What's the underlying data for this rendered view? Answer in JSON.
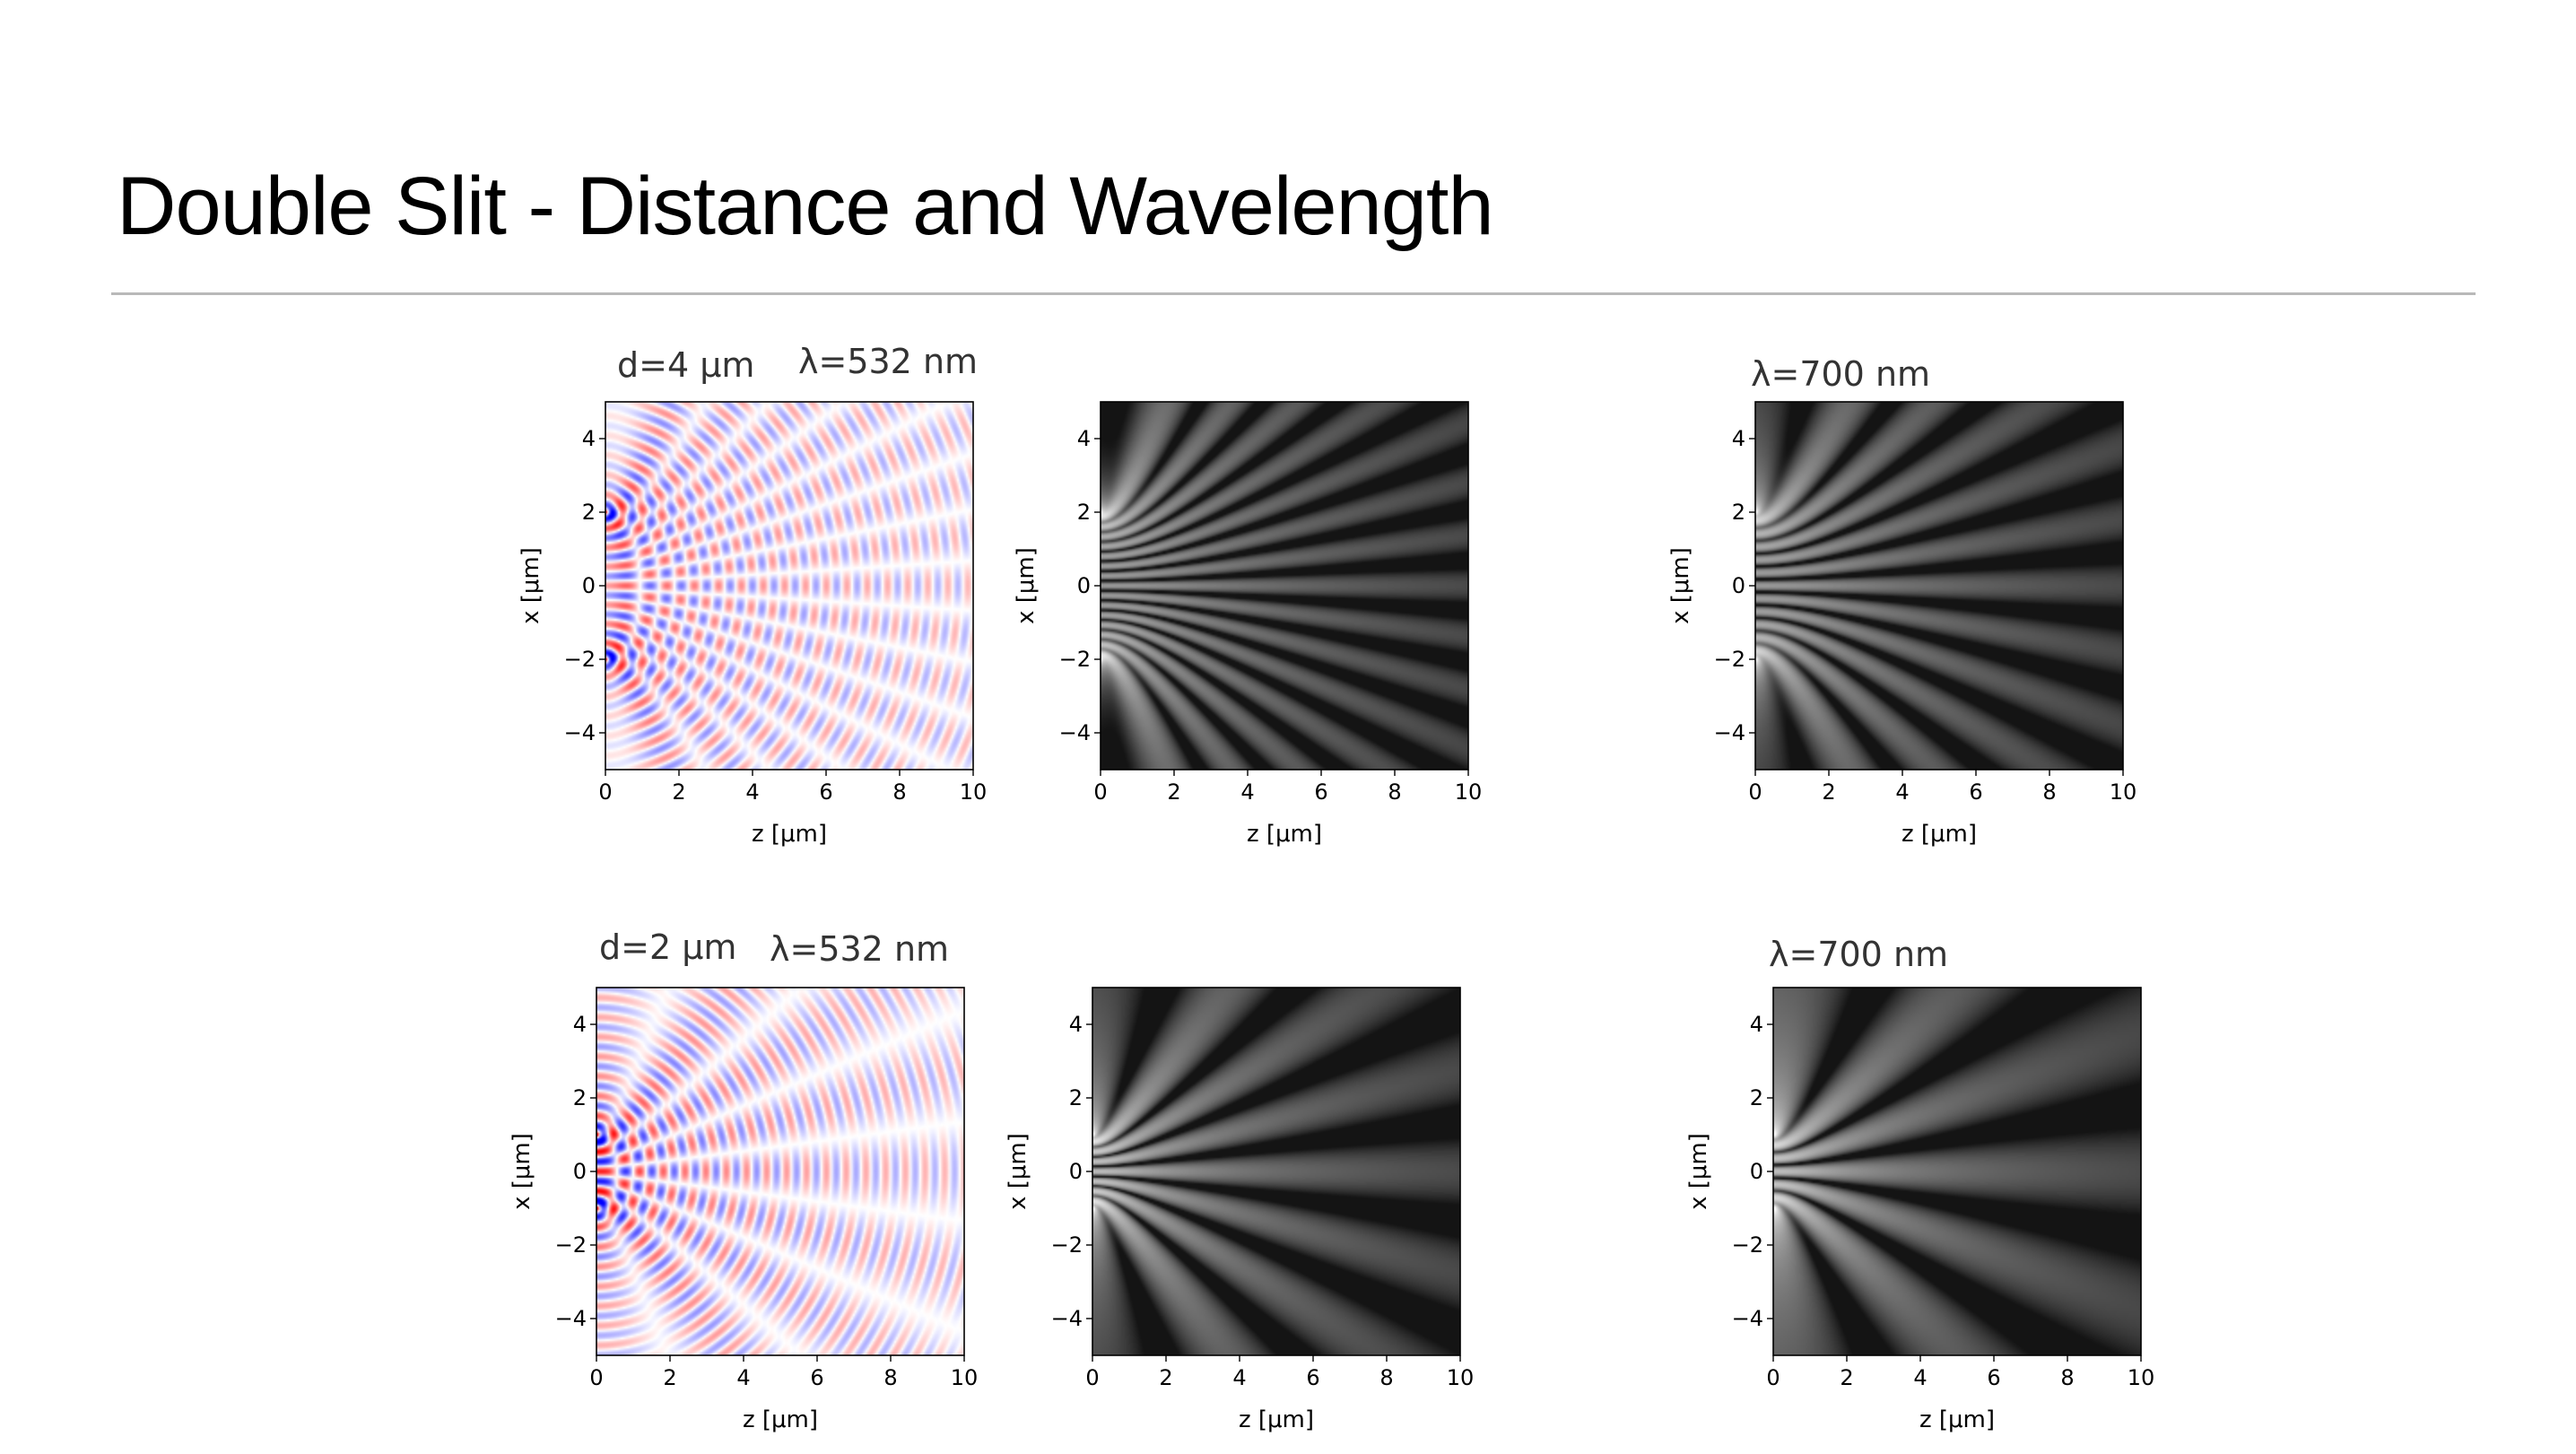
{
  "slide": {
    "title": "Double Slit - Distance and Wavelength"
  },
  "labels": {
    "row1_d": "d=4 μm",
    "row1_lambda_left": "λ=532 nm",
    "row1_lambda_right": "λ=700 nm",
    "row2_d": "d=2 μm",
    "row2_lambda_left": "λ=532 nm",
    "row2_lambda_right": "λ=700 nm"
  },
  "colors": {
    "field_positive": "#d4242a",
    "field_negative": "#2a3cc8",
    "intensity_bright": "#ffffff",
    "intensity_dark": "#222222"
  },
  "chart_data": [
    {
      "type": "heatmap",
      "quantity": "field",
      "colormap": "bwr",
      "slit_separation_um": 4,
      "wavelength_nm": 532,
      "slit_positions_um": [
        2,
        -2
      ],
      "xlabel": "z [μm]",
      "ylabel": "x [μm]",
      "xlim": [
        0,
        10
      ],
      "ylim": [
        -5,
        5
      ],
      "xticks": [
        0,
        2,
        4,
        6,
        8,
        10
      ],
      "yticks": [
        4,
        2,
        0,
        -2,
        -4
      ],
      "ytick_labels": [
        "4",
        "2",
        "0",
        "−2",
        "−4"
      ]
    },
    {
      "type": "heatmap",
      "quantity": "intensity",
      "colormap": "gray",
      "slit_separation_um": 4,
      "wavelength_nm": 532,
      "slit_positions_um": [
        2,
        -2
      ],
      "xlabel": "z [μm]",
      "ylabel": "x [μm]",
      "xlim": [
        0,
        10
      ],
      "ylim": [
        -5,
        5
      ],
      "xticks": [
        0,
        2,
        4,
        6,
        8,
        10
      ],
      "yticks": [
        4,
        2,
        0,
        -2,
        -4
      ],
      "ytick_labels": [
        "4",
        "2",
        "0",
        "−2",
        "−4"
      ]
    },
    {
      "type": "heatmap",
      "quantity": "intensity",
      "colormap": "gray",
      "slit_separation_um": 4,
      "wavelength_nm": 700,
      "slit_positions_um": [
        2,
        -2
      ],
      "xlabel": "z [μm]",
      "ylabel": "x [μm]",
      "xlim": [
        0,
        10
      ],
      "ylim": [
        -5,
        5
      ],
      "xticks": [
        0,
        2,
        4,
        6,
        8,
        10
      ],
      "yticks": [
        4,
        2,
        0,
        -2,
        -4
      ],
      "ytick_labels": [
        "4",
        "2",
        "0",
        "−2",
        "−4"
      ]
    },
    {
      "type": "heatmap",
      "quantity": "field",
      "colormap": "bwr",
      "slit_separation_um": 2,
      "wavelength_nm": 532,
      "slit_positions_um": [
        1,
        -1
      ],
      "xlabel": "z [μm]",
      "ylabel": "x [μm]",
      "xlim": [
        0,
        10
      ],
      "ylim": [
        -5,
        5
      ],
      "xticks": [
        0,
        2,
        4,
        6,
        8,
        10
      ],
      "yticks": [
        4,
        2,
        0,
        -2,
        -4
      ],
      "ytick_labels": [
        "4",
        "2",
        "0",
        "−2",
        "−4"
      ]
    },
    {
      "type": "heatmap",
      "quantity": "intensity",
      "colormap": "gray",
      "slit_separation_um": 2,
      "wavelength_nm": 532,
      "slit_positions_um": [
        1,
        -1
      ],
      "xlabel": "z [μm]",
      "ylabel": "x [μm]",
      "xlim": [
        0,
        10
      ],
      "ylim": [
        -5,
        5
      ],
      "xticks": [
        0,
        2,
        4,
        6,
        8,
        10
      ],
      "yticks": [
        4,
        2,
        0,
        -2,
        -4
      ],
      "ytick_labels": [
        "4",
        "2",
        "0",
        "−2",
        "−4"
      ]
    },
    {
      "type": "heatmap",
      "quantity": "intensity",
      "colormap": "gray",
      "slit_separation_um": 2,
      "wavelength_nm": 700,
      "slit_positions_um": [
        1,
        -1
      ],
      "xlabel": "z [μm]",
      "ylabel": "x [μm]",
      "xlim": [
        0,
        10
      ],
      "ylim": [
        -5,
        5
      ],
      "xticks": [
        0,
        2,
        4,
        6,
        8,
        10
      ],
      "yticks": [
        4,
        2,
        0,
        -2,
        -4
      ],
      "ytick_labels": [
        "4",
        "2",
        "0",
        "−2",
        "−4"
      ]
    }
  ]
}
